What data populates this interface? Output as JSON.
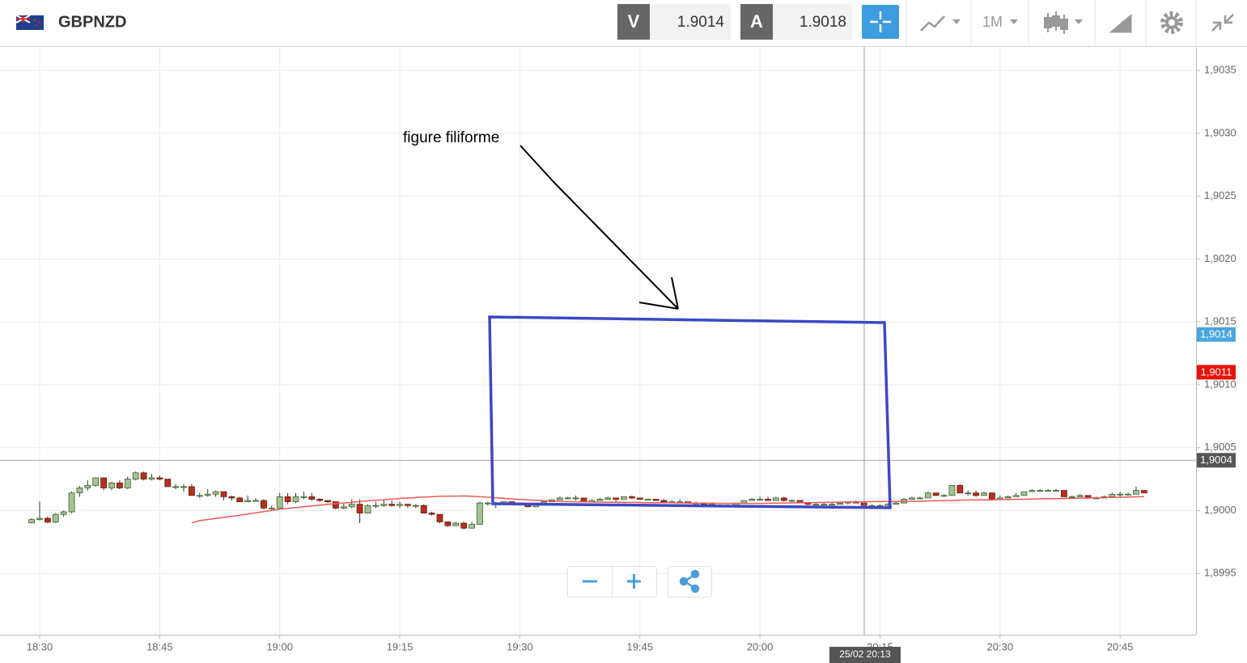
{
  "toolbar": {
    "symbol": "GBPNZD",
    "bid_label": "V",
    "bid": 1.9014,
    "ask_label": "A",
    "ask": 1.9018,
    "timeframe": "1M"
  },
  "chart_data": {
    "type": "candlestick",
    "categories": [
      null,
      "18:30",
      null,
      null,
      null,
      null,
      null,
      null,
      null,
      null,
      null,
      null,
      null,
      null,
      null,
      null,
      "18:45",
      null,
      null,
      null,
      null,
      null,
      null,
      null,
      null,
      null,
      null,
      null,
      null,
      null,
      null,
      "19:00",
      null,
      null,
      null,
      null,
      null,
      null,
      null,
      null,
      null,
      null,
      null,
      null,
      null,
      null,
      "19:15",
      null,
      null,
      null,
      null,
      null,
      null,
      null,
      null,
      null,
      null,
      null,
      null,
      null,
      null,
      "19:30",
      null,
      null,
      null,
      null,
      null,
      null,
      null,
      null,
      null,
      null,
      null,
      null,
      null,
      null,
      "19:45",
      null,
      null,
      null,
      null,
      null,
      null,
      null,
      null,
      null,
      null,
      null,
      null,
      null,
      null,
      "20:00",
      null,
      null,
      null,
      null,
      null,
      null,
      null,
      null,
      null,
      null,
      null,
      null,
      null,
      null,
      "20:15",
      null,
      null,
      null,
      null,
      null,
      null,
      null,
      null,
      null,
      null,
      null,
      null,
      null,
      null,
      "20:30",
      null,
      null,
      null,
      null,
      null,
      null,
      null,
      null,
      null,
      null,
      null,
      null,
      null,
      null,
      "20:45",
      null,
      null,
      null
    ],
    "candles": [
      [
        1.899902,
        1.89994,
        1.8999,
        1.899929
      ],
      [
        1.899929,
        1.900072,
        1.89992,
        1.899939
      ],
      [
        1.899939,
        1.89995,
        1.8999,
        1.899908
      ],
      [
        1.899908,
        1.89998,
        1.8999,
        1.899969
      ],
      [
        1.899969,
        1.9,
        1.89995,
        1.89999
      ],
      [
        1.89999,
        1.90015,
        1.89998,
        1.90014
      ],
      [
        1.90014,
        1.900195,
        1.90011,
        1.90018
      ],
      [
        1.90018,
        1.90024,
        1.90016,
        1.9002
      ],
      [
        1.9002,
        1.90026,
        1.90019,
        1.90026
      ],
      [
        1.90026,
        1.90026,
        1.90016,
        1.90018
      ],
      [
        1.90018,
        1.90023,
        1.90016,
        1.90022
      ],
      [
        1.90022,
        1.90024,
        1.90017,
        1.90018
      ],
      [
        1.90018,
        1.90027,
        1.90017,
        1.90025
      ],
      [
        1.90025,
        1.90031,
        1.90024,
        1.9003
      ],
      [
        1.9003,
        1.90031,
        1.90024,
        1.90025
      ],
      [
        1.90025,
        1.90029,
        1.90024,
        1.90026
      ],
      [
        1.90026,
        1.90028,
        1.90024,
        1.90025
      ],
      [
        1.90025,
        1.90025,
        1.90019,
        1.90019
      ],
      [
        1.90019,
        1.90021,
        1.90017,
        1.90019
      ],
      [
        1.90019,
        1.90021,
        1.90015,
        1.90019
      ],
      [
        1.90019,
        1.90021,
        1.90012,
        1.90012
      ],
      [
        1.90012,
        1.90014,
        1.9001,
        1.90012
      ],
      [
        1.90012,
        1.90017,
        1.90011,
        1.90013
      ],
      [
        1.90013,
        1.90016,
        1.90011,
        1.90015
      ],
      [
        1.90015,
        1.90015,
        1.90008,
        1.90011
      ],
      [
        1.90011,
        1.90012,
        1.90008,
        1.9001
      ],
      [
        1.9001,
        1.90011,
        1.90007,
        1.90007
      ],
      [
        1.90007,
        1.90012,
        1.90007,
        1.90008
      ],
      [
        1.90008,
        1.9001,
        1.90007,
        1.90008
      ],
      [
        1.90008,
        1.90009,
        1.90001,
        1.90002
      ],
      [
        1.90002,
        1.90004,
        1.90001,
        1.90002
      ],
      [
        1.90002,
        1.90014,
        1.90002,
        1.90011
      ],
      [
        1.90011,
        1.90014,
        1.90005,
        1.90007
      ],
      [
        1.90007,
        1.90014,
        1.90006,
        1.90011
      ],
      [
        1.90011,
        1.90015,
        1.90009,
        1.90011
      ],
      [
        1.90011,
        1.90014,
        1.90008,
        1.90009
      ],
      [
        1.90009,
        1.9001,
        1.90007,
        1.90008
      ],
      [
        1.90008,
        1.90008,
        1.90006,
        1.90007
      ],
      [
        1.90007,
        1.90007,
        1.90001,
        1.90002
      ],
      [
        1.90002,
        1.90006,
        1.90001,
        1.90003
      ],
      [
        1.90003,
        1.90009,
        1.90002,
        1.90005
      ],
      [
        1.90005,
        1.90009,
        1.8999,
        1.89998
      ],
      [
        1.89998,
        1.90005,
        1.89998,
        1.90004
      ],
      [
        1.90004,
        1.90007,
        1.90002,
        1.90004
      ],
      [
        1.90004,
        1.90009,
        1.90003,
        1.90005
      ],
      [
        1.90005,
        1.90008,
        1.90003,
        1.90004
      ],
      [
        1.90004,
        1.90007,
        1.90002,
        1.90005
      ],
      [
        1.90005,
        1.90005,
        1.90002,
        1.90004
      ],
      [
        1.90004,
        1.90005,
        1.90002,
        1.90004
      ],
      [
        1.90004,
        1.90005,
        1.89998,
        1.89998
      ],
      [
        1.89998,
        1.89999,
        1.89996,
        1.89997
      ],
      [
        1.89997,
        1.89997,
        1.8999,
        1.89991
      ],
      [
        1.89991,
        1.89991,
        1.89987,
        1.89988
      ],
      [
        1.89988,
        1.89991,
        1.89988,
        1.8999
      ],
      [
        1.8999,
        1.89991,
        1.89985,
        1.89986
      ],
      [
        1.89986,
        1.89991,
        1.89986,
        1.89989
      ],
      [
        1.89989,
        1.90007,
        1.89989,
        1.90006
      ],
      [
        1.90006,
        1.90007,
        1.90004,
        1.90006
      ],
      [
        1.90006,
        1.90007,
        1.90002,
        1.90006
      ],
      [
        1.90006,
        1.90007,
        1.90005,
        1.90007
      ],
      [
        1.90007,
        1.90007,
        1.90005,
        1.90006
      ],
      [
        1.90006,
        1.90006,
        1.90004,
        1.90005
      ],
      [
        1.90005,
        1.90006,
        1.90003,
        1.90003
      ],
      [
        1.90003,
        1.90006,
        1.90003,
        1.90006
      ],
      [
        1.90006,
        1.90008,
        1.90005,
        1.90007
      ],
      [
        1.90007,
        1.90009,
        1.90007,
        1.900085
      ],
      [
        1.900085,
        1.90011,
        1.900085,
        1.9001
      ],
      [
        1.9001,
        1.90011,
        1.90009,
        1.9001
      ],
      [
        1.9001,
        1.90012,
        1.90008,
        1.9001
      ],
      [
        1.9001,
        1.9001,
        1.90007,
        1.90007
      ],
      [
        1.90007,
        1.90009,
        1.90007,
        1.90008
      ],
      [
        1.90008,
        1.9001,
        1.90008,
        1.90009
      ],
      [
        1.90009,
        1.90011,
        1.90009,
        1.9001
      ],
      [
        1.9001,
        1.9001,
        1.90007,
        1.90009
      ],
      [
        1.90009,
        1.90011,
        1.90009,
        1.90011
      ],
      [
        1.90011,
        1.90012,
        1.90009,
        1.9001
      ],
      [
        1.9001,
        1.9001,
        1.90009,
        1.90009
      ],
      [
        1.90009,
        1.900095,
        1.90009,
        1.90009
      ],
      [
        1.90009,
        1.90009,
        1.90008,
        1.90008
      ],
      [
        1.90008,
        1.90009,
        1.90006,
        1.90007
      ],
      [
        1.90007,
        1.90008,
        1.90006,
        1.90007
      ],
      [
        1.90007,
        1.90009,
        1.90006,
        1.90007
      ],
      [
        1.90007,
        1.90007,
        1.90006,
        1.90006
      ],
      [
        1.90006,
        1.90007,
        1.90005,
        1.90006
      ],
      [
        1.90006,
        1.90006,
        1.90005,
        1.90005
      ],
      [
        1.90005,
        1.90005,
        1.90004,
        1.90004
      ],
      [
        1.90004,
        1.90005,
        1.90003,
        1.90004
      ],
      [
        1.90004,
        1.90005,
        1.90004,
        1.90004
      ],
      [
        1.90004,
        1.90006,
        1.90004,
        1.90006
      ],
      [
        1.90006,
        1.90008,
        1.90006,
        1.90008
      ],
      [
        1.90008,
        1.9001,
        1.90008,
        1.90009
      ],
      [
        1.90009,
        1.90011,
        1.90008,
        1.90009
      ],
      [
        1.90009,
        1.90011,
        1.90008,
        1.90008
      ],
      [
        1.90008,
        1.90011,
        1.90008,
        1.9001
      ],
      [
        1.9001,
        1.90011,
        1.90007,
        1.90008
      ],
      [
        1.90008,
        1.90009,
        1.90007,
        1.90008
      ],
      [
        1.90008,
        1.90008,
        1.90006,
        1.90006
      ],
      [
        1.90006,
        1.90006,
        1.90004,
        1.90005
      ],
      [
        1.90005,
        1.90006,
        1.90004,
        1.90005
      ],
      [
        1.90005,
        1.90006,
        1.90004,
        1.90005
      ],
      [
        1.90005,
        1.90006,
        1.90004,
        1.90005
      ],
      [
        1.90005,
        1.90007,
        1.90005,
        1.90006
      ],
      [
        1.90006,
        1.90007,
        1.90005,
        1.90007
      ],
      [
        1.90007,
        1.90008,
        1.90006,
        1.90006
      ],
      [
        1.90006,
        1.90006,
        1.90004,
        1.90004
      ],
      [
        1.90004,
        1.90005,
        1.90002,
        1.90004
      ],
      [
        1.90004,
        1.90005,
        1.90003,
        1.90004
      ],
      [
        1.90004,
        1.90006,
        1.90004,
        1.90005
      ],
      [
        1.90005,
        1.90007,
        1.90005,
        1.90006
      ],
      [
        1.90006,
        1.9001,
        1.90006,
        1.90009
      ],
      [
        1.90009,
        1.90011,
        1.90009,
        1.9001
      ],
      [
        1.9001,
        1.90011,
        1.90009,
        1.9001
      ],
      [
        1.9001,
        1.90015,
        1.9001,
        1.90014
      ],
      [
        1.90014,
        1.90014,
        1.90012,
        1.90012
      ],
      [
        1.90012,
        1.90013,
        1.90011,
        1.90012
      ],
      [
        1.90012,
        1.9002,
        1.90012,
        1.9002
      ],
      [
        1.9002,
        1.90021,
        1.90014,
        1.90014
      ],
      [
        1.90014,
        1.90016,
        1.90012,
        1.90014
      ],
      [
        1.90014,
        1.90016,
        1.90011,
        1.90012
      ],
      [
        1.90012,
        1.90015,
        1.90012,
        1.90014
      ],
      [
        1.90014,
        1.90014,
        1.90009,
        1.90009
      ],
      [
        1.90009,
        1.90012,
        1.90009,
        1.9001
      ],
      [
        1.9001,
        1.90012,
        1.9001,
        1.90011
      ],
      [
        1.90011,
        1.90014,
        1.90011,
        1.90012
      ],
      [
        1.90012,
        1.90015,
        1.90012,
        1.90015
      ],
      [
        1.90015,
        1.90017,
        1.90015,
        1.90016
      ],
      [
        1.90016,
        1.90017,
        1.90016,
        1.90016
      ],
      [
        1.90016,
        1.90017,
        1.90016,
        1.90016
      ],
      [
        1.90016,
        1.90017,
        1.90016,
        1.90016
      ],
      [
        1.90016,
        1.90016,
        1.90011,
        1.90011
      ],
      [
        1.90011,
        1.90012,
        1.9001,
        1.90011
      ],
      [
        1.90011,
        1.90013,
        1.90011,
        1.90012
      ],
      [
        1.90012,
        1.90012,
        1.90009,
        1.9001
      ],
      [
        1.9001,
        1.90011,
        1.90009,
        1.9001
      ],
      [
        1.9001,
        1.90012,
        1.9001,
        1.90011
      ],
      [
        1.90011,
        1.90014,
        1.90011,
        1.90013
      ],
      [
        1.90013,
        1.90015,
        1.90011,
        1.90013
      ],
      [
        1.90013,
        1.90014,
        1.90012,
        1.90013
      ],
      [
        1.90013,
        1.90019,
        1.90013,
        1.90016
      ],
      [
        1.90016,
        1.90016,
        1.90014,
        1.90014
      ]
    ],
    "up_color": "#a3c394",
    "down_color": "#b3301e",
    "moving_average": {
      "color": "#ec5a55",
      "values": [
        null,
        null,
        null,
        null,
        null,
        null,
        null,
        null,
        null,
        null,
        null,
        null,
        null,
        null,
        null,
        null,
        null,
        null,
        null,
        null,
        1.899902,
        1.89992,
        1.899929,
        1.899937,
        1.899946,
        1.899954,
        1.899963,
        1.899973,
        1.899982,
        1.899992,
        1.900001,
        1.900011,
        1.900017,
        1.900024,
        1.90003,
        1.900037,
        1.900043,
        1.900049,
        1.900055,
        1.90006,
        1.900066,
        1.900072,
        1.900077,
        1.900082,
        1.900086,
        1.900091,
        1.900096,
        1.9001,
        1.900103,
        1.900107,
        1.90011,
        1.900114,
        1.900115,
        1.900115,
        1.900116,
        1.900114,
        1.900111,
        1.900106,
        1.900102,
        1.900097,
        1.900093,
        1.900088,
        1.900085,
        1.900082,
        1.900078,
        1.900075,
        1.900072,
        1.900071,
        1.90007,
        1.900069,
        1.900068,
        1.900067,
        1.900066,
        1.900066,
        1.900065,
        1.900065,
        1.900064,
        1.900063,
        1.900063,
        1.900062,
        1.900062,
        1.900061,
        1.90006,
        1.900059,
        1.900059,
        1.900058,
        1.900057,
        1.900057,
        1.900057,
        1.900057,
        1.900057,
        1.900057,
        1.900058,
        1.900059,
        1.90006,
        1.900061,
        1.900062,
        1.900063,
        1.900064,
        1.900065,
        1.900066,
        1.900067,
        1.900068,
        1.900069,
        1.90007,
        1.900071,
        1.900072,
        1.900072,
        1.900073,
        1.900073,
        1.900074,
        1.900074,
        1.900076,
        1.900078,
        1.900079,
        1.900081,
        1.900083,
        1.900084,
        1.900085,
        1.900085,
        1.900086,
        1.900087,
        1.900088,
        1.900089,
        1.90009,
        1.900092,
        1.900093,
        1.900094,
        1.900095,
        1.900096,
        1.900098,
        1.900099,
        1.9001,
        1.900102,
        1.900103,
        1.900105,
        1.900106,
        1.900108,
        1.900109,
        1.900111
      ]
    },
    "ylim": [
      1.899,
      1.9037
    ],
    "yticks": [
      {
        "value": 1.8995,
        "label": "1,8995"
      },
      {
        "value": 1.9,
        "label": "1,9000"
      },
      {
        "value": 1.9005,
        "label": "1,9005"
      },
      {
        "value": 1.901,
        "label": "1,9010"
      },
      {
        "value": 1.9015,
        "label": "1,9015"
      },
      {
        "value": 1.902,
        "label": "1,9020"
      },
      {
        "value": 1.9025,
        "label": "1,9025"
      },
      {
        "value": 1.903,
        "label": "1,9030"
      },
      {
        "value": 1.9035,
        "label": "1,9035"
      }
    ],
    "grid": true,
    "price_tags": [
      {
        "value": 1.9014,
        "label": "1,9014",
        "color": "#4aa6dc"
      },
      {
        "value": 1.9011,
        "label": "1,9011",
        "color": "#e8120c"
      },
      {
        "value": 1.9004,
        "label": "1,9004",
        "color": "#555555"
      }
    ],
    "crosshair": {
      "value": 1.9004,
      "x_label": "25/02 20:13"
    },
    "annotation": "figure filiforme"
  }
}
